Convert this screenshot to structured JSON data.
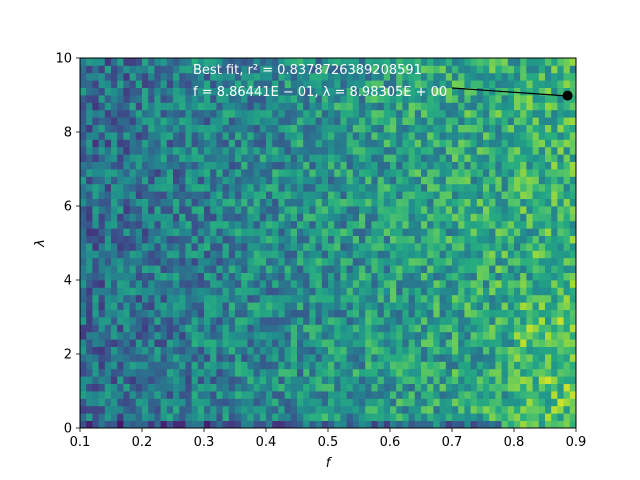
{
  "chart_data": {
    "type": "heatmap",
    "title": "",
    "xlabel": "f",
    "ylabel": "λ",
    "xlim": [
      0.1,
      0.9
    ],
    "ylim": [
      0,
      10
    ],
    "grid": false,
    "colormap": "viridis",
    "x_ticks": [
      "0.1",
      "0.2",
      "0.3",
      "0.4",
      "0.5",
      "0.6",
      "0.7",
      "0.8",
      "0.9"
    ],
    "y_ticks": [
      "0",
      "2",
      "4",
      "6",
      "8",
      "10"
    ],
    "x_bins": 80,
    "y_bins": 50,
    "trend": "intensity increases with f; low values (dark purple) concentrated at small f, high values (yellow) at f near 0.9",
    "best_fit_point": {
      "f": 0.886441,
      "lambda": 8.98305
    },
    "annotation": {
      "line1": "Best fit, r² = 0.8378726389208591",
      "line2": "f = 8.86441E − 01, λ = 8.98305E + 00"
    }
  }
}
